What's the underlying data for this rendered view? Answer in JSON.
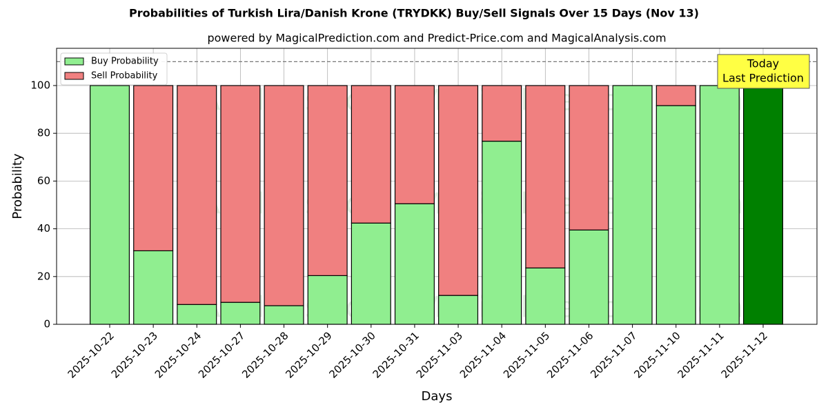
{
  "chart_data": {
    "type": "stacked_bar",
    "title": "Probabilities of Turkish Lira/Danish Krone (TRYDKK) Buy/Sell Signals Over 15 Days (Nov 13)",
    "subtitle": "powered by MagicalPrediction.com and Predict-Price.com and MagicalAnalysis.com",
    "x_label": "Days",
    "y_label": "Probability",
    "categories": [
      "2025-10-22",
      "2025-10-23",
      "2025-10-24",
      "2025-10-27",
      "2025-10-28",
      "2025-10-29",
      "2025-10-30",
      "2025-10-31",
      "2025-11-03",
      "2025-11-04",
      "2025-11-05",
      "2025-11-06",
      "2025-11-07",
      "2025-11-10",
      "2025-11-11",
      "2025-11-12"
    ],
    "series": [
      {
        "name": "Buy Probability",
        "color": "#90ee90",
        "colors": [
          "#90ee90",
          "#90ee90",
          "#90ee90",
          "#90ee90",
          "#90ee90",
          "#90ee90",
          "#90ee90",
          "#90ee90",
          "#90ee90",
          "#90ee90",
          "#90ee90",
          "#90ee90",
          "#90ee90",
          "#90ee90",
          "#90ee90",
          "#008000"
        ],
        "values": [
          100,
          30.8,
          8.3,
          9.2,
          7.8,
          20.4,
          42.4,
          50.5,
          12.1,
          76.7,
          23.6,
          39.5,
          100,
          91.6,
          100,
          100
        ]
      },
      {
        "name": "Sell Probability",
        "color": "#f08080",
        "values": [
          0,
          69.2,
          91.7,
          90.8,
          92.2,
          79.6,
          57.6,
          49.5,
          87.9,
          23.3,
          76.4,
          60.5,
          0,
          8.4,
          0,
          0
        ]
      }
    ],
    "ylim": [
      0,
      115.6
    ],
    "yticks": [
      0,
      20,
      40,
      60,
      80,
      100
    ],
    "grid": true,
    "reference_line": 110,
    "legend": "upper-left",
    "annotation": [
      "Today",
      "Last Prediction"
    ],
    "watermarks": [
      "MagicalAnalysis.com",
      "MagicalPrediction.com"
    ]
  }
}
